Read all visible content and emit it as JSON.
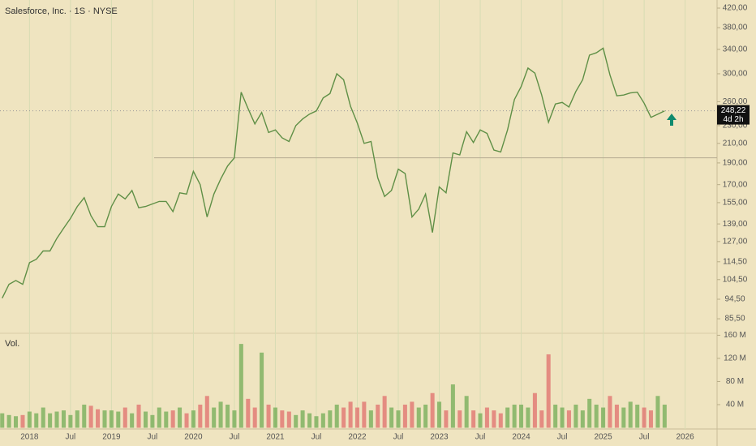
{
  "chart_data": {
    "type": "line",
    "title": "Salesforce, Inc. · 1S · NYSE",
    "x": [
      2017.667,
      2017.75,
      2017.833,
      2017.917,
      2018,
      2018.083,
      2018.167,
      2018.25,
      2018.333,
      2018.417,
      2018.5,
      2018.583,
      2018.667,
      2018.75,
      2018.833,
      2018.917,
      2019,
      2019.083,
      2019.167,
      2019.25,
      2019.333,
      2019.417,
      2019.5,
      2019.583,
      2019.667,
      2019.75,
      2019.833,
      2019.917,
      2020,
      2020.083,
      2020.167,
      2020.25,
      2020.333,
      2020.417,
      2020.5,
      2020.583,
      2020.667,
      2020.75,
      2020.833,
      2020.917,
      2021,
      2021.083,
      2021.167,
      2021.25,
      2021.333,
      2021.417,
      2021.5,
      2021.583,
      2021.667,
      2021.75,
      2021.833,
      2021.917,
      2022,
      2022.083,
      2022.167,
      2022.25,
      2022.333,
      2022.417,
      2022.5,
      2022.583,
      2022.667,
      2022.75,
      2022.833,
      2022.917,
      2023,
      2023.083,
      2023.167,
      2023.25,
      2023.333,
      2023.417,
      2023.5,
      2023.583,
      2023.667,
      2023.75,
      2023.833,
      2023.917,
      2024,
      2024.083,
      2024.167,
      2024.25,
      2024.333,
      2024.417,
      2024.5,
      2024.583,
      2024.667,
      2024.75,
      2024.833,
      2024.917,
      2025,
      2025.083,
      2025.167,
      2025.25,
      2025.333,
      2025.417,
      2025.5,
      2025.583,
      2025.667,
      2025.75
    ],
    "values": [
      95,
      102,
      104,
      102,
      114,
      116,
      121,
      121,
      129,
      136,
      143,
      152,
      159,
      145,
      137,
      137,
      152,
      162,
      158,
      165,
      151,
      152,
      154,
      156,
      156,
      148,
      163,
      162,
      182,
      170,
      144,
      162,
      175,
      187,
      195,
      273,
      251,
      232,
      246,
      222,
      225,
      216,
      212,
      230,
      238,
      244,
      248,
      265,
      271,
      300,
      291,
      254,
      233,
      210,
      212,
      176,
      160,
      165,
      184,
      180,
      144,
      150,
      162,
      133,
      168,
      163,
      200,
      198,
      223,
      211,
      225,
      221,
      203,
      201,
      225,
      263,
      281,
      309,
      301,
      269,
      234,
      257,
      259,
      253,
      274,
      291,
      330,
      334,
      342,
      298,
      268,
      269,
      272,
      273,
      258,
      240,
      244,
      248
    ],
    "volume": [
      25000000,
      22000000,
      20000000,
      22000000,
      28000000,
      25000000,
      35000000,
      25000000,
      28000000,
      30000000,
      22000000,
      30000000,
      40000000,
      38000000,
      32000000,
      30000000,
      30000000,
      28000000,
      35000000,
      25000000,
      40000000,
      28000000,
      22000000,
      35000000,
      28000000,
      30000000,
      35000000,
      25000000,
      30000000,
      40000000,
      55000000,
      35000000,
      45000000,
      40000000,
      30000000,
      145000000,
      50000000,
      35000000,
      130000000,
      40000000,
      35000000,
      30000000,
      28000000,
      22000000,
      30000000,
      25000000,
      20000000,
      25000000,
      30000000,
      40000000,
      35000000,
      45000000,
      35000000,
      45000000,
      30000000,
      40000000,
      55000000,
      35000000,
      30000000,
      40000000,
      45000000,
      35000000,
      40000000,
      60000000,
      45000000,
      30000000,
      75000000,
      30000000,
      55000000,
      30000000,
      25000000,
      35000000,
      30000000,
      25000000,
      35000000,
      40000000,
      40000000,
      35000000,
      60000000,
      30000000,
      127000000,
      40000000,
      35000000,
      30000000,
      40000000,
      30000000,
      50000000,
      40000000,
      35000000,
      55000000,
      40000000,
      35000000,
      45000000,
      40000000,
      35000000,
      30000000,
      55000000,
      40000000
    ],
    "volume_label": "Vol.",
    "up_color": "#6aa84f",
    "down_color": "#e06666",
    "log_scale": true,
    "ylim": [
      79.7,
      437.8
    ],
    "yticks": [
      {
        "value": 420,
        "label": "420,00"
      },
      {
        "value": 380,
        "label": "380,00"
      },
      {
        "value": 340,
        "label": "340,00"
      },
      {
        "value": 300,
        "label": "300,00"
      },
      {
        "value": 260,
        "label": "260,00"
      },
      {
        "value": 230,
        "label": "230,00"
      },
      {
        "value": 210,
        "label": "210,00"
      },
      {
        "value": 190,
        "label": "190,00"
      },
      {
        "value": 170,
        "label": "170,00"
      },
      {
        "value": 155,
        "label": "155,00"
      },
      {
        "value": 139,
        "label": "139,00"
      },
      {
        "value": 127,
        "label": "127,00"
      },
      {
        "value": 114.5,
        "label": "114,50"
      },
      {
        "value": 104.5,
        "label": "104,50"
      },
      {
        "value": 94.5,
        "label": "94,50"
      },
      {
        "value": 85.5,
        "label": "85,50"
      }
    ],
    "volume_lim": [
      0,
      162000000
    ],
    "volume_ticks": [
      {
        "value": 160000000,
        "label": "160 M"
      },
      {
        "value": 120000000,
        "label": "120 M"
      },
      {
        "value": 80000000,
        "label": "80 M"
      },
      {
        "value": 40000000,
        "label": "40 M"
      }
    ],
    "xlim": [
      2017.64,
      2026.39
    ],
    "xticks": [
      {
        "value": 2018,
        "label": "2018"
      },
      {
        "value": 2018.5,
        "label": "Jul"
      },
      {
        "value": 2019,
        "label": "2019"
      },
      {
        "value": 2019.5,
        "label": "Jul"
      },
      {
        "value": 2020,
        "label": "2020"
      },
      {
        "value": 2020.5,
        "label": "Jul"
      },
      {
        "value": 2021,
        "label": "2021"
      },
      {
        "value": 2021.5,
        "label": "Jul"
      },
      {
        "value": 2022,
        "label": "2022"
      },
      {
        "value": 2022.5,
        "label": "Jul"
      },
      {
        "value": 2023,
        "label": "2023"
      },
      {
        "value": 2023.5,
        "label": "Jul"
      },
      {
        "value": 2024,
        "label": "2024"
      },
      {
        "value": 2024.5,
        "label": "Jul"
      },
      {
        "value": 2025,
        "label": "2025"
      },
      {
        "value": 2025.5,
        "label": "Jul"
      },
      {
        "value": 2026,
        "label": "2026"
      }
    ],
    "last_price": {
      "value": 248.22,
      "label": "248,22"
    },
    "countdown": "4d 2h",
    "level": 195,
    "grid": true
  }
}
